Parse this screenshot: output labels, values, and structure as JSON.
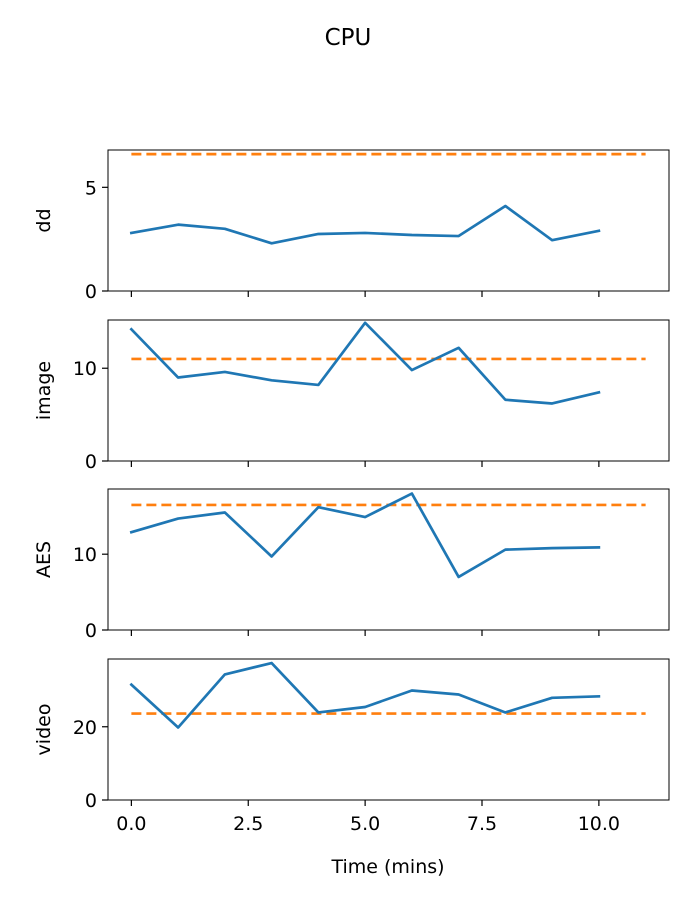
{
  "chart_data": {
    "type": "line",
    "title": "CPU",
    "xlabel": "Time (mins)",
    "xlim": [
      -0.5,
      11.5
    ],
    "x_ticks": [
      "0.0",
      "2.5",
      "5.0",
      "7.5",
      "10.0"
    ],
    "x_tick_values": [
      0,
      2.5,
      5,
      7.5,
      10
    ],
    "colors": {
      "series": "#1f77b4",
      "reference": "#ff7f0e"
    },
    "subplots": [
      {
        "ylabel": "dd",
        "ylim": [
          0,
          6.8
        ],
        "y_ticks": [
          "0",
          "5"
        ],
        "y_tick_values": [
          0,
          5
        ],
        "series": {
          "x": [
            0,
            1,
            2,
            3,
            4,
            5,
            6,
            7,
            8,
            9,
            10
          ],
          "values": [
            2.8,
            3.2,
            3.0,
            2.3,
            2.75,
            2.8,
            2.7,
            2.65,
            4.1,
            2.45,
            2.9
          ]
        },
        "reference": {
          "x": [
            0,
            11
          ],
          "value": 6.6
        }
      },
      {
        "ylabel": "image",
        "ylim": [
          0,
          15.2
        ],
        "y_ticks": [
          "0",
          "10"
        ],
        "y_tick_values": [
          0,
          10
        ],
        "series": {
          "x": [
            0,
            1,
            2,
            3,
            4,
            5,
            6,
            7,
            8,
            9,
            10
          ],
          "values": [
            14.2,
            9.0,
            9.6,
            8.7,
            8.2,
            14.9,
            9.8,
            12.2,
            6.6,
            6.2,
            7.4
          ]
        },
        "reference": {
          "x": [
            0,
            11
          ],
          "value": 11.0
        }
      },
      {
        "ylabel": "AES",
        "ylim": [
          0,
          18.6
        ],
        "y_ticks": [
          "0",
          "10"
        ],
        "y_tick_values": [
          0,
          10
        ],
        "series": {
          "x": [
            0,
            1,
            2,
            3,
            4,
            5,
            6,
            7,
            8,
            9,
            10
          ],
          "values": [
            12.9,
            14.7,
            15.5,
            9.7,
            16.2,
            14.9,
            18.0,
            7.0,
            10.6,
            10.8,
            10.9
          ]
        },
        "reference": {
          "x": [
            0,
            11
          ],
          "value": 16.5
        }
      },
      {
        "ylabel": "video",
        "ylim": [
          0,
          38.5
        ],
        "y_ticks": [
          "0",
          "20"
        ],
        "y_tick_values": [
          0,
          20
        ],
        "series": {
          "x": [
            0,
            1,
            2,
            3,
            4,
            5,
            6,
            7,
            8,
            9,
            10
          ],
          "values": [
            31.5,
            19.8,
            34.3,
            37.4,
            23.9,
            25.4,
            29.9,
            28.8,
            23.9,
            27.9,
            28.3
          ]
        },
        "reference": {
          "x": [
            0,
            11
          ],
          "value": 23.6
        }
      }
    ]
  }
}
